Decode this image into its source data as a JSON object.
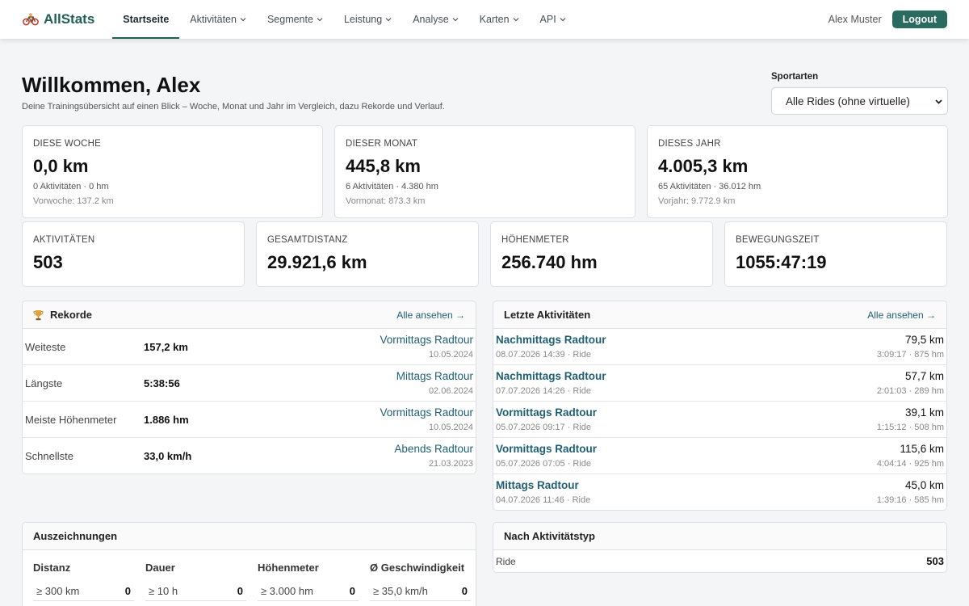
{
  "nav": {
    "brand": "AllStats",
    "items": [
      {
        "label": "Startseite",
        "active": true,
        "dropdown": false
      },
      {
        "label": "Aktivitäten",
        "active": false,
        "dropdown": true
      },
      {
        "label": "Segmente",
        "active": false,
        "dropdown": true
      },
      {
        "label": "Leistung",
        "active": false,
        "dropdown": true
      },
      {
        "label": "Analyse",
        "active": false,
        "dropdown": true
      },
      {
        "label": "Karten",
        "active": false,
        "dropdown": true
      },
      {
        "label": "API",
        "active": false,
        "dropdown": true
      }
    ],
    "user_name": "Alex Muster",
    "logout_label": "Logout"
  },
  "header": {
    "title": "Willkommen, Alex",
    "subtitle": "Deine Trainingsübersicht auf einen Blick – Woche, Monat und Jahr im Vergleich, dazu Rekorde und Verlauf.",
    "sport_label": "Sportarten",
    "sport_selected": "Alle Rides (ohne virtuelle)"
  },
  "period_cards": [
    {
      "label": "DIESE WOCHE",
      "value": "0,0 km",
      "sub": "0 Aktivitäten · 0 hm",
      "prev": "Vorwoche: 137.2 km"
    },
    {
      "label": "DIESER MONAT",
      "value": "445,8 km",
      "sub": "6 Aktivitäten · 4.380 hm",
      "prev": "Vormonat: 873.3 km"
    },
    {
      "label": "DIESES JAHR",
      "value": "4.005,3 km",
      "sub": "65 Aktivitäten · 36.012 hm",
      "prev": "Vorjahr: 9.772.9 km"
    }
  ],
  "total_cards": [
    {
      "label": "AKTIVITÄTEN",
      "value": "503"
    },
    {
      "label": "GESAMTDISTANZ",
      "value": "29.921,6 km"
    },
    {
      "label": "HÖHENMETER",
      "value": "256.740 hm"
    },
    {
      "label": "BEWEGUNGSZEIT",
      "value": "1055:47:19"
    }
  ],
  "records": {
    "title": "Rekorde",
    "link": "Alle ansehen →",
    "rows": [
      {
        "label": "Weiteste",
        "value": "157,2 km",
        "activity": "Vormittags Radtour",
        "date": "10.05.2024"
      },
      {
        "label": "Längste",
        "value": "5:38:56",
        "activity": "Mittags Radtour",
        "date": "02.06.2024"
      },
      {
        "label": "Meiste Höhenmeter",
        "value": "1.886 hm",
        "activity": "Vormittags Radtour",
        "date": "10.05.2024"
      },
      {
        "label": "Schnellste",
        "value": "33,0 km/h",
        "activity": "Abends Radtour",
        "date": "21.03.2023"
      }
    ]
  },
  "recent": {
    "title": "Letzte Aktivitäten",
    "link": "Alle ansehen →",
    "rows": [
      {
        "name": "Nachmittags Radtour",
        "meta": "08.07.2026 14:39 · Ride",
        "distance": "79,5 km",
        "stats": "3:09:17 · 875 hm"
      },
      {
        "name": "Nachmittags Radtour",
        "meta": "07.07.2026 14:26 · Ride",
        "distance": "57,7 km",
        "stats": "2:01:03 · 289 hm"
      },
      {
        "name": "Vormittags Radtour",
        "meta": "05.07.2026 09:17 · Ride",
        "distance": "39,1 km",
        "stats": "1:15:12 · 508 hm"
      },
      {
        "name": "Vormittags Radtour",
        "meta": "05.07.2026 07:05 · Ride",
        "distance": "115,6 km",
        "stats": "4:04:14 · 925 hm"
      },
      {
        "name": "Mittags Radtour",
        "meta": "04.07.2026 11:46 · Ride",
        "distance": "45,0 km",
        "stats": "1:39:16 · 585 hm"
      }
    ]
  },
  "awards": {
    "title": "Auszeichnungen",
    "columns": [
      {
        "title": "Distanz",
        "threshold": "≥ 300 km",
        "count": "0"
      },
      {
        "title": "Dauer",
        "threshold": "≥ 10 h",
        "count": "0"
      },
      {
        "title": "Höhenmeter",
        "threshold": "≥ 3.000 hm",
        "count": "0"
      },
      {
        "title": "Ø Geschwindigkeit",
        "threshold": "≥ 35,0 km/h",
        "count": "0"
      }
    ]
  },
  "by_type": {
    "title": "Nach Aktivitätstyp",
    "rows": [
      {
        "type": "Ride",
        "count": "503"
      }
    ]
  },
  "colors": {
    "brand": "#1f5f54",
    "link": "#1f5f73",
    "logout": "#2a6b60"
  }
}
